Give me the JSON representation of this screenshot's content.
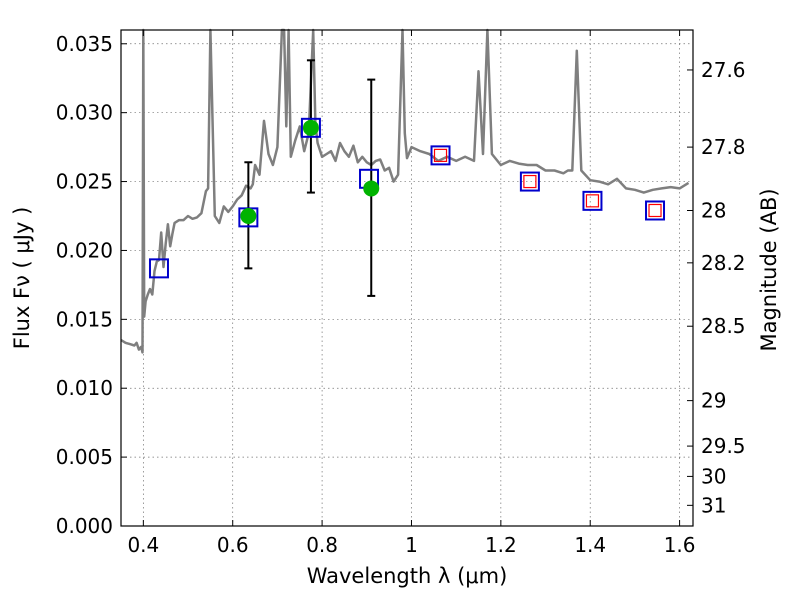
{
  "chart_data": {
    "type": "scatter",
    "xlabel": "Wavelength  λ (μm)",
    "ylabel": "Flux  Fν  ( μJy )",
    "ylabel_right": "Magnitude (AB)",
    "xlim": [
      0.35,
      1.63
    ],
    "ylim": [
      0.0,
      0.036
    ],
    "grid": true,
    "x_ticks": [
      0.4,
      0.6,
      0.8,
      1.0,
      1.2,
      1.4,
      1.6
    ],
    "x_tick_labels": [
      "0.4",
      "0.6",
      "0.8",
      "1",
      "1.2",
      "1.4",
      "1.6"
    ],
    "y_ticks": [
      0.0,
      0.005,
      0.01,
      0.015,
      0.02,
      0.025,
      0.03,
      0.035
    ],
    "y_tick_labels": [
      "0.000",
      "0.005",
      "0.010",
      "0.015",
      "0.020",
      "0.025",
      "0.030",
      "0.035"
    ],
    "right_ticks": [
      {
        "label": "27.6",
        "flux": 0.0331
      },
      {
        "label": "27.8",
        "flux": 0.0275
      },
      {
        "label": "28",
        "flux": 0.0229
      },
      {
        "label": "28.2",
        "flux": 0.0191
      },
      {
        "label": "28.5",
        "flux": 0.0145
      },
      {
        "label": "29",
        "flux": 0.0091
      },
      {
        "label": "29.5",
        "flux": 0.0058
      },
      {
        "label": "30",
        "flux": 0.0036
      },
      {
        "label": "31",
        "flux": 0.0015
      }
    ],
    "colors": {
      "model": "#7f7f7f",
      "detection": "#00b300",
      "box_blue": "#0000cc",
      "box_red": "#ff0000",
      "errorbar": "#000000"
    },
    "series": [
      {
        "kind": "model_spectrum",
        "x": [
          0.35,
          0.36,
          0.37,
          0.38,
          0.385,
          0.39,
          0.395,
          0.398,
          0.4,
          0.402,
          0.405,
          0.41,
          0.415,
          0.42,
          0.425,
          0.43,
          0.435,
          0.44,
          0.445,
          0.45,
          0.455,
          0.46,
          0.465,
          0.47,
          0.48,
          0.49,
          0.5,
          0.51,
          0.52,
          0.53,
          0.54,
          0.545,
          0.55,
          0.56,
          0.57,
          0.58,
          0.59,
          0.6,
          0.61,
          0.62,
          0.63,
          0.64,
          0.645,
          0.65,
          0.66,
          0.67,
          0.68,
          0.69,
          0.7,
          0.71,
          0.715,
          0.72,
          0.725,
          0.73,
          0.74,
          0.75,
          0.76,
          0.77,
          0.78,
          0.785,
          0.79,
          0.8,
          0.81,
          0.82,
          0.83,
          0.84,
          0.85,
          0.86,
          0.87,
          0.88,
          0.89,
          0.9,
          0.91,
          0.92,
          0.93,
          0.94,
          0.95,
          0.96,
          0.97,
          0.98,
          0.985,
          0.99,
          1.0,
          1.02,
          1.04,
          1.06,
          1.08,
          1.1,
          1.12,
          1.14,
          1.15,
          1.16,
          1.17,
          1.18,
          1.2,
          1.22,
          1.24,
          1.26,
          1.28,
          1.3,
          1.32,
          1.34,
          1.35,
          1.36,
          1.37,
          1.38,
          1.4,
          1.42,
          1.44,
          1.46,
          1.48,
          1.5,
          1.52,
          1.54,
          1.56,
          1.58,
          1.6,
          1.62
        ],
        "y": [
          0.0135,
          0.0133,
          0.0132,
          0.0131,
          0.0133,
          0.0128,
          0.013,
          0.0126,
          0.036,
          0.0152,
          0.0163,
          0.0168,
          0.0172,
          0.0168,
          0.0185,
          0.0192,
          0.0193,
          0.0213,
          0.0188,
          0.0205,
          0.0219,
          0.0203,
          0.0212,
          0.022,
          0.0222,
          0.0222,
          0.0225,
          0.0223,
          0.0224,
          0.0227,
          0.0243,
          0.0245,
          0.036,
          0.0225,
          0.022,
          0.0232,
          0.0228,
          0.0232,
          0.0237,
          0.024,
          0.0247,
          0.0245,
          0.0248,
          0.0262,
          0.0255,
          0.0294,
          0.027,
          0.0262,
          0.0275,
          0.036,
          0.036,
          0.029,
          0.036,
          0.0268,
          0.028,
          0.029,
          0.0272,
          0.0285,
          0.036,
          0.0292,
          0.0278,
          0.0268,
          0.027,
          0.0272,
          0.0265,
          0.0278,
          0.0272,
          0.0268,
          0.0276,
          0.0264,
          0.0268,
          0.0264,
          0.0262,
          0.0265,
          0.0266,
          0.0258,
          0.026,
          0.025,
          0.0255,
          0.036,
          0.0285,
          0.0267,
          0.0275,
          0.0272,
          0.027,
          0.0265,
          0.0268,
          0.0265,
          0.0268,
          0.0265,
          0.033,
          0.027,
          0.036,
          0.027,
          0.0262,
          0.0265,
          0.0263,
          0.0262,
          0.0262,
          0.0258,
          0.0258,
          0.0256,
          0.0258,
          0.0258,
          0.0345,
          0.0258,
          0.0251,
          0.025,
          0.0248,
          0.0252,
          0.0245,
          0.0244,
          0.0242,
          0.0244,
          0.0245,
          0.0246,
          0.0245,
          0.0249
        ]
      },
      {
        "kind": "synthetic_photometry_boxes",
        "x": [
          0.435,
          0.635,
          0.775,
          0.905,
          1.065,
          1.265,
          1.405,
          1.545
        ],
        "y": [
          0.0187,
          0.0224,
          0.0289,
          0.0252,
          0.0269,
          0.025,
          0.0236,
          0.0229
        ]
      },
      {
        "kind": "upper_limit_inner_boxes",
        "x": [
          1.065,
          1.265,
          1.405,
          1.545
        ],
        "y": [
          0.0269,
          0.025,
          0.0236,
          0.0229
        ]
      },
      {
        "kind": "measured_detections",
        "x": [
          0.635,
          0.775,
          0.91
        ],
        "y": [
          0.0225,
          0.0289,
          0.0245
        ],
        "err_low": [
          0.0187,
          0.0242,
          0.0167
        ],
        "err_high": [
          0.0264,
          0.0338,
          0.0324
        ]
      }
    ]
  }
}
